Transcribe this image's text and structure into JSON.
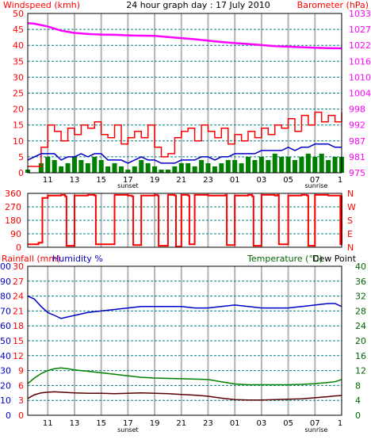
{
  "header": {
    "left_title": "Windspeed (kmh)",
    "center_title": "24 hour graph day : 17 July 2010",
    "right_title": "Barometer (hPa)"
  },
  "colors": {
    "bg": "#ffffff",
    "grid_h": "#008080",
    "grid_v": "#b4b4b4",
    "frame": "#000000",
    "red": "#ff0000",
    "magenta": "#ff00ff",
    "blue": "#0000cc",
    "green": "#008000",
    "darkgreen": "#006400",
    "maroon": "#5a0000"
  },
  "time_axis": {
    "hours": [
      "11",
      "13",
      "15",
      "17",
      "19",
      "21",
      "23",
      "01",
      "03",
      "05",
      "07"
    ],
    "end_tick": "1",
    "sunset_label": "sunset",
    "sunrise_label": "sunrise"
  },
  "chart_data": [
    {
      "id": "wind",
      "type": "line",
      "title": "24 hour graph day : 17 July 2010",
      "left_axis": {
        "label": "Windspeed (kmh)",
        "ylim": [
          0,
          50
        ],
        "ticks": [
          "0",
          "5",
          "10",
          "15",
          "20",
          "25",
          "30",
          "35",
          "40",
          "45",
          "50"
        ]
      },
      "right_axis": {
        "label": "Barometer (hPa)",
        "ylim": [
          975,
          1032.5
        ],
        "ticks": [
          "975",
          "981",
          "987",
          "992",
          "998",
          "1004",
          "1010",
          "1016",
          "1022",
          "1027",
          "1033"
        ]
      },
      "series": [
        {
          "axis": "left",
          "color": "#ff0000",
          "style": "step",
          "x": [
            9.5,
            10.5,
            11.0,
            11.5,
            12.0,
            12.5,
            13.0,
            13.5,
            14.0,
            14.5,
            15.0,
            15.5,
            16.0,
            16.5,
            17.0,
            17.5,
            18.0,
            18.5,
            19.0,
            19.5,
            20.0,
            20.5,
            21.0,
            21.5,
            22.0,
            22.5,
            23.0,
            23.5,
            24.0,
            24.5,
            25.0,
            25.5,
            26.0,
            26.5,
            27.0,
            27.5,
            28.0,
            28.5,
            29.0,
            29.5,
            30.0,
            30.5,
            31.0,
            31.5,
            32.0,
            32.5,
            33.0
          ],
          "values": [
            2,
            8,
            15,
            13,
            10,
            14,
            12,
            15,
            14,
            16,
            12,
            11,
            15,
            9,
            11,
            13,
            11,
            15,
            8,
            5,
            6,
            11,
            13,
            14,
            10,
            15,
            13,
            11,
            14,
            9,
            12,
            10,
            13,
            11,
            14,
            12,
            15,
            14,
            17,
            13,
            18,
            15,
            19,
            16,
            18,
            16,
            19
          ]
        },
        {
          "axis": "left",
          "color": "#0000cc",
          "style": "line",
          "x": [
            9.5,
            10.5,
            11.0,
            11.5,
            12.0,
            12.5,
            13.0,
            13.5,
            14.0,
            14.5,
            15.0,
            15.5,
            16.0,
            16.5,
            17.0,
            17.5,
            18.0,
            18.5,
            19.0,
            19.5,
            20.0,
            20.5,
            21.0,
            21.5,
            22.0,
            22.5,
            23.0,
            23.5,
            24.0,
            24.5,
            25.0,
            25.5,
            26.0,
            26.5,
            27.0,
            27.5,
            28.0,
            28.5,
            29.0,
            29.5,
            30.0,
            30.5,
            31.0,
            31.5,
            32.0,
            32.5,
            33.0
          ],
          "values": [
            4,
            6,
            6,
            6,
            4,
            5,
            5,
            6,
            5,
            6,
            6,
            4,
            4,
            4,
            3,
            4,
            5,
            4,
            4,
            3,
            3,
            3,
            4,
            4,
            4,
            5,
            5,
            4,
            5,
            5,
            6,
            6,
            6,
            6,
            7,
            7,
            7,
            7,
            8,
            7,
            8,
            8,
            9,
            9,
            9,
            8,
            8
          ]
        },
        {
          "axis": "left",
          "color": "#008000",
          "style": "bars",
          "x": [
            9.5,
            10.5,
            11.0,
            11.5,
            12.0,
            12.5,
            13.0,
            13.5,
            14.0,
            14.5,
            15.0,
            15.5,
            16.0,
            16.5,
            17.0,
            17.5,
            18.0,
            18.5,
            19.0,
            19.5,
            20.0,
            20.5,
            21.0,
            21.5,
            22.0,
            22.5,
            23.0,
            23.5,
            24.0,
            24.5,
            25.0,
            25.5,
            26.0,
            26.5,
            27.0,
            27.5,
            28.0,
            28.5,
            29.0,
            29.5,
            30.0,
            30.5,
            31.0,
            31.5,
            32.0,
            32.5,
            33.0
          ],
          "values": [
            1,
            3,
            5,
            4,
            2,
            3,
            5,
            4,
            3,
            5,
            4,
            2,
            3,
            2,
            1,
            2,
            4,
            3,
            2,
            1,
            1,
            2,
            3,
            3,
            2,
            4,
            3,
            2,
            3,
            4,
            4,
            3,
            5,
            4,
            5,
            4,
            6,
            5,
            5,
            4,
            5,
            6,
            5,
            6,
            4,
            5,
            5
          ]
        },
        {
          "axis": "right",
          "color": "#ff00ff",
          "style": "line",
          "x": [
            9.5,
            10.0,
            11.0,
            12.0,
            13.0,
            14.0,
            15.0,
            16.0,
            17.0,
            18.0,
            19.0,
            20.0,
            21.0,
            22.0,
            23.0,
            24.0,
            25.0,
            26.0,
            27.0,
            28.0,
            29.0,
            30.0,
            31.0,
            32.0,
            33.0
          ],
          "values": [
            1029.0,
            1028.8,
            1027.8,
            1026.3,
            1025.5,
            1025.1,
            1024.9,
            1024.8,
            1024.6,
            1024.5,
            1024.4,
            1024.0,
            1023.6,
            1023.2,
            1022.7,
            1022.2,
            1021.8,
            1021.5,
            1021.1,
            1020.7,
            1020.5,
            1020.3,
            1020.1,
            1020.0,
            1019.9
          ]
        }
      ]
    },
    {
      "id": "direction",
      "type": "line",
      "ylim": [
        0,
        360
      ],
      "left_ticks": [
        "0",
        "90",
        "180",
        "270",
        "360"
      ],
      "right_labels": [
        "N",
        "W",
        "S",
        "E",
        "N"
      ],
      "series": [
        {
          "color": "#ff0000",
          "style": "step",
          "x": [
            9.5,
            10.3,
            10.6,
            11.0,
            12.0,
            12.3,
            12.4,
            13.0,
            14.0,
            14.5,
            14.6,
            16.0,
            17.0,
            17.3,
            17.4,
            18.0,
            19.0,
            19.2,
            19.3,
            20.0,
            20.5,
            20.6,
            21.0,
            21.5,
            21.6,
            22.0,
            23.0,
            24.0,
            24.3,
            24.4,
            25.0,
            26.0,
            26.3,
            26.4,
            27.0,
            28.0,
            28.2,
            28.3,
            29.0,
            30.0,
            30.4,
            30.5,
            31.0,
            32.0,
            32.5,
            32.9,
            33.0
          ],
          "values": [
            20,
            30,
            330,
            345,
            350,
            340,
            10,
            345,
            350,
            345,
            20,
            350,
            345,
            340,
            15,
            345,
            350,
            345,
            10,
            350,
            345,
            5,
            350,
            345,
            20,
            350,
            345,
            345,
            350,
            15,
            345,
            350,
            340,
            10,
            350,
            345,
            350,
            20,
            345,
            350,
            345,
            10,
            350,
            345,
            345,
            20,
            345
          ]
        }
      ]
    },
    {
      "id": "temp_hum",
      "type": "line",
      "left_axis": {
        "label": "Rainfall (mm)",
        "second_label": "Humidity %",
        "ylim": [
          0,
          100
        ],
        "ticks": [
          "0",
          "10",
          "20",
          "30",
          "40",
          "50",
          "60",
          "70",
          "80",
          "90",
          "100"
        ],
        "ticks_inner": [
          "0",
          "3",
          "6",
          "9",
          "12",
          "15",
          "18",
          "21",
          "24",
          "27",
          "30"
        ]
      },
      "right_axis": {
        "label": "Temperature (°C)",
        "second_label": "Dew Point",
        "ylim": [
          0,
          40
        ],
        "ticks": [
          "0",
          "4",
          "8",
          "12",
          "16",
          "20",
          "24",
          "28",
          "32",
          "36",
          "40"
        ]
      },
      "series": [
        {
          "axis": "left",
          "color": "#0000cc",
          "style": "line",
          "x": [
            9.5,
            10.0,
            10.5,
            11.0,
            11.5,
            12.0,
            12.5,
            13.0,
            14.0,
            15.0,
            16.0,
            17.0,
            18.0,
            19.0,
            20.0,
            21.0,
            22.0,
            23.0,
            24.0,
            25.0,
            26.0,
            27.0,
            28.0,
            29.0,
            30.0,
            31.0,
            32.0,
            32.5,
            33.0
          ],
          "values": [
            80,
            78,
            73,
            69,
            67,
            65,
            66,
            67,
            69,
            70,
            71,
            72,
            73,
            73,
            73,
            73,
            72,
            72,
            73,
            74,
            73,
            72,
            72,
            72,
            73,
            74,
            75,
            75,
            73
          ]
        },
        {
          "axis": "right",
          "color": "#008000",
          "style": "line",
          "x": [
            9.5,
            10.0,
            10.5,
            11.0,
            11.5,
            12.0,
            12.5,
            13.0,
            14.0,
            15.0,
            16.0,
            17.0,
            18.0,
            19.0,
            20.0,
            21.0,
            22.0,
            23.0,
            24.0,
            25.0,
            26.0,
            27.0,
            28.0,
            29.0,
            30.0,
            31.0,
            32.0,
            32.5,
            33.0
          ],
          "values": [
            8.5,
            10.0,
            11.2,
            12.0,
            12.5,
            12.7,
            12.5,
            12.2,
            11.8,
            11.4,
            11.0,
            10.6,
            10.2,
            10.0,
            9.9,
            9.8,
            9.7,
            9.6,
            9.0,
            8.4,
            8.2,
            8.2,
            8.2,
            8.2,
            8.3,
            8.5,
            8.8,
            9.0,
            9.6
          ]
        },
        {
          "axis": "right",
          "color": "#5a0000",
          "style": "line",
          "x": [
            9.5,
            10.0,
            10.5,
            11.0,
            11.5,
            12.0,
            13.0,
            14.0,
            15.0,
            16.0,
            17.0,
            18.0,
            19.0,
            20.0,
            21.0,
            22.0,
            23.0,
            24.0,
            25.0,
            26.0,
            27.0,
            28.0,
            29.0,
            30.0,
            31.0,
            32.0,
            32.5,
            33.0
          ],
          "values": [
            4.5,
            5.5,
            6.0,
            6.2,
            6.3,
            6.2,
            6.0,
            5.9,
            5.9,
            5.8,
            5.9,
            6.0,
            5.9,
            5.8,
            5.6,
            5.4,
            5.1,
            4.6,
            4.2,
            4.1,
            4.1,
            4.2,
            4.3,
            4.4,
            4.7,
            5.0,
            5.2,
            5.3
          ]
        }
      ]
    }
  ]
}
